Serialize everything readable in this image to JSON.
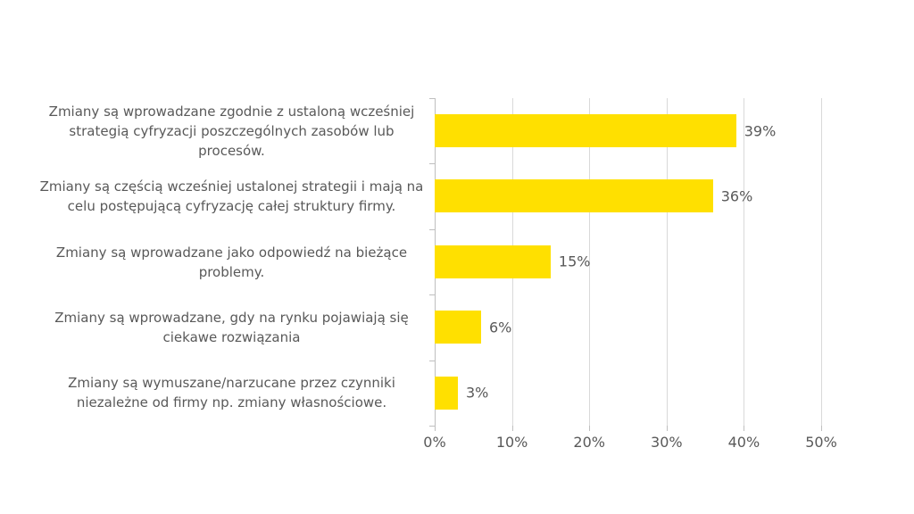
{
  "chart_data": {
    "type": "bar",
    "orientation": "horizontal",
    "title": "",
    "categories": [
      "Zmiany są wprowadzane zgodnie z ustaloną wcześniej strategią cyfryzacji poszczególnych zasobów lub procesów.",
      "Zmiany są częścią wcześniej ustalonej strategii i mają na celu postępującą cyfryzację całej struktury firmy.",
      "Zmiany są wprowadzane jako odpowiedź na bieżące problemy.",
      "Zmiany są wprowadzane, gdy na rynku pojawiają się ciekawe rozwiązania",
      "Zmiany są wymuszane/narzucane przez czynniki niezależne od firmy np. zmiany własnościowe."
    ],
    "values": [
      39,
      36,
      15,
      6,
      3
    ],
    "data_labels": [
      "39%",
      "36%",
      "15%",
      "6%",
      "3%"
    ],
    "x_tick_labels": [
      "0%",
      "10%",
      "20%",
      "30%",
      "40%",
      "50%"
    ],
    "xlim": [
      0,
      50
    ],
    "grid": "vertical-gridlines-on",
    "legend": "none",
    "colors": {
      "bar": "#FFE000",
      "text": "#595959",
      "gridline": "#D9D9D9",
      "axis": "#BFBFBF",
      "background": "#FFFFFF"
    }
  }
}
